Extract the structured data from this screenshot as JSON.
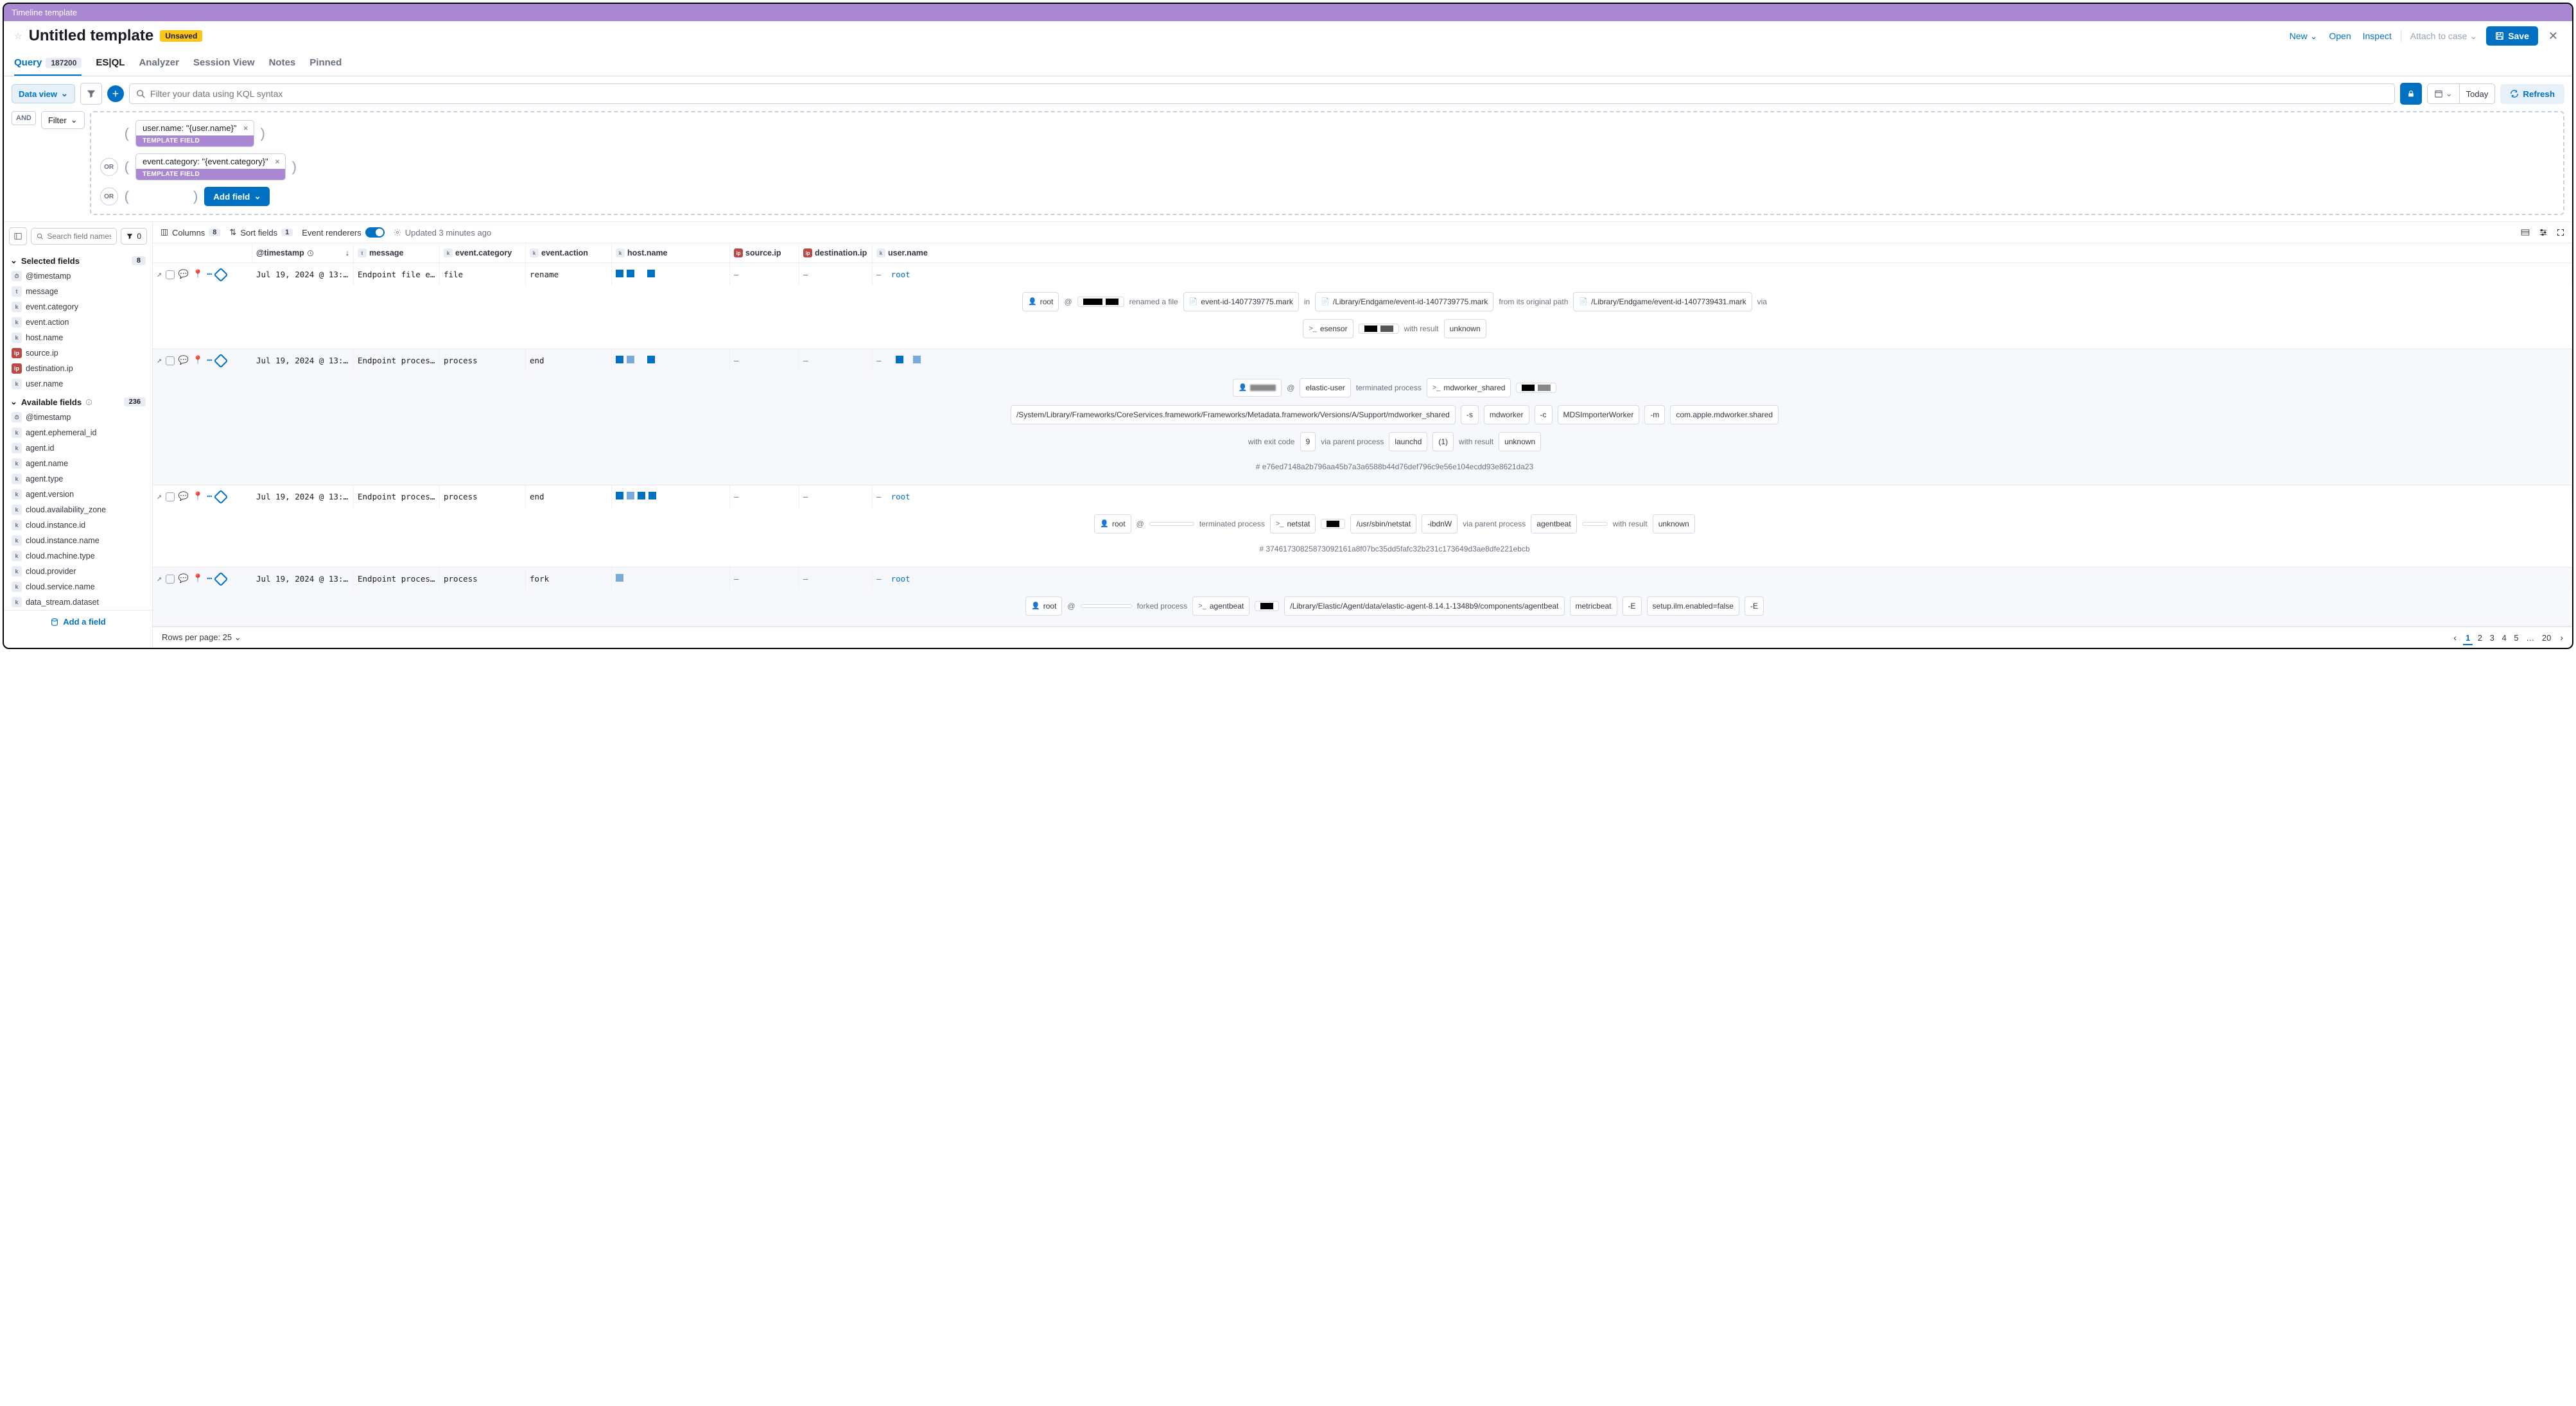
{
  "banner": {
    "title": "Timeline template"
  },
  "header": {
    "title": "Untitled template",
    "unsaved_badge": "Unsaved",
    "new": "New",
    "open": "Open",
    "inspect": "Inspect",
    "attach": "Attach to case",
    "save": "Save"
  },
  "tabs": {
    "query": "Query",
    "query_count": "187200",
    "esql": "ES|QL",
    "analyzer": "Analyzer",
    "session_view": "Session View",
    "notes": "Notes",
    "pinned": "Pinned"
  },
  "qbar": {
    "dataview": "Data view",
    "search_placeholder": "Filter your data using KQL syntax",
    "today": "Today",
    "refresh": "Refresh"
  },
  "filters": {
    "and": "AND",
    "filter": "Filter",
    "or": "OR",
    "template_field": "TEMPLATE FIELD",
    "chip1": "user.name: \"{user.name}\"",
    "chip2": "event.category: \"{event.category}\"",
    "add_field": "Add field"
  },
  "sidebar": {
    "search_placeholder": "Search field names",
    "filter_count": "0",
    "selected_title": "Selected fields",
    "selected_count": "8",
    "selected": [
      {
        "type": "date",
        "label": "@timestamp"
      },
      {
        "type": "t",
        "label": "message"
      },
      {
        "type": "k",
        "label": "event.category"
      },
      {
        "type": "k",
        "label": "event.action"
      },
      {
        "type": "k",
        "label": "host.name"
      },
      {
        "type": "ip",
        "label": "source.ip"
      },
      {
        "type": "ip",
        "label": "destination.ip"
      },
      {
        "type": "k",
        "label": "user.name"
      }
    ],
    "available_title": "Available fields",
    "available_count": "236",
    "available": [
      {
        "type": "date",
        "label": "@timestamp"
      },
      {
        "type": "k",
        "label": "agent.ephemeral_id"
      },
      {
        "type": "k",
        "label": "agent.id"
      },
      {
        "type": "k",
        "label": "agent.name"
      },
      {
        "type": "k",
        "label": "agent.type"
      },
      {
        "type": "k",
        "label": "agent.version"
      },
      {
        "type": "k",
        "label": "cloud.availability_zone"
      },
      {
        "type": "k",
        "label": "cloud.instance.id"
      },
      {
        "type": "k",
        "label": "cloud.instance.name"
      },
      {
        "type": "k",
        "label": "cloud.machine.type"
      },
      {
        "type": "k",
        "label": "cloud.provider"
      },
      {
        "type": "k",
        "label": "cloud.service.name"
      },
      {
        "type": "k",
        "label": "data_stream.dataset"
      }
    ],
    "add_field": "Add a field"
  },
  "toolbar": {
    "columns": "Columns",
    "columns_count": "8",
    "sort": "Sort fields",
    "sort_count": "1",
    "renderers": "Event renderers",
    "updated": "Updated 3 minutes ago"
  },
  "columns": {
    "timestamp": "@timestamp",
    "message": "message",
    "category": "event.category",
    "action": "event.action",
    "host": "host.name",
    "sip": "source.ip",
    "dip": "destination.ip",
    "user": "user.name"
  },
  "rows": [
    {
      "ts": "Jul 19, 2024 @ 13:57…",
      "msg": "Endpoint file eve…",
      "cat": "file",
      "act": "rename",
      "host_blocks": [
        "n",
        "n",
        "sp",
        "n"
      ],
      "sip": "—",
      "dip": "—",
      "user": "root",
      "detail": {
        "type": "file",
        "actor": "root",
        "verb": "renamed a file",
        "file1": "event-id-1407739775.mark",
        "in": "in",
        "path1": "/Library/Endgame/event-id-1407739775.mark",
        "from": "from its original path",
        "path2": "/Library/Endgame/event-id-1407739431.mark",
        "via": "via",
        "proc": "esensor",
        "with_result": "with result",
        "result": "unknown"
      }
    },
    {
      "ts": "Jul 19, 2024 @ 13:57…",
      "msg": "Endpoint process …",
      "cat": "process",
      "act": "end",
      "host_blocks": [
        "n",
        "lt",
        "sp",
        "n"
      ],
      "sip": "—",
      "dip": "—",
      "user_blocks": true,
      "detail": {
        "type": "process",
        "actor_label": "elastic-user",
        "verb": "terminated process",
        "proc": "mdworker_shared",
        "path": "/System/Library/Frameworks/CoreServices.framework/Frameworks/Metadata.framework/Versions/A/Support/mdworker_shared",
        "args": [
          "-s",
          "mdworker",
          "-c",
          "MDSImporterWorker",
          "-m",
          "com.apple.mdworker.shared"
        ],
        "exit_label": "with exit code",
        "exit": "9",
        "via_parent": "via parent process",
        "parent": "launchd",
        "parent_arg": "(1)",
        "with_result": "with result",
        "result": "unknown",
        "hash": "# e76ed7148a2b796aa45b7a3a6588b44d76def796c9e56e104ecdd93e8621da23"
      }
    },
    {
      "ts": "Jul 19, 2024 @ 13:57…",
      "msg": "Endpoint process …",
      "cat": "process",
      "act": "end",
      "host_blocks": [
        "n",
        "lt",
        "n",
        "n"
      ],
      "sip": "—",
      "dip": "—",
      "user": "root",
      "detail": {
        "type": "process2",
        "actor": "root",
        "verb": "terminated process",
        "proc": "netstat",
        "path": "/usr/sbin/netstat",
        "args": [
          "-ibdnW"
        ],
        "via_parent": "via parent process",
        "parent": "agentbeat",
        "with_result": "with result",
        "result": "unknown",
        "hash": "# 37461730825873092161a8f07bc35dd5fafc32b231c173649d3ae8dfe221ebcb"
      }
    },
    {
      "ts": "Jul 19, 2024 @ 13:57…",
      "msg": "Endpoint process …",
      "cat": "process",
      "act": "fork",
      "host_blocks": [
        "lt"
      ],
      "sip": "—",
      "dip": "—",
      "user": "root",
      "detail": {
        "type": "fork",
        "actor": "root",
        "verb": "forked process",
        "proc": "agentbeat",
        "path": "/Library/Elastic/Agent/data/elastic-agent-8.14.1-1348b9/components/agentbeat",
        "args": [
          "metricbeat",
          "-E",
          "setup.ilm.enabled=false",
          "-E"
        ]
      }
    }
  ],
  "footer": {
    "rpp": "Rows per page: 25",
    "pages": [
      "1",
      "2",
      "3",
      "4",
      "5",
      "…",
      "20"
    ]
  }
}
